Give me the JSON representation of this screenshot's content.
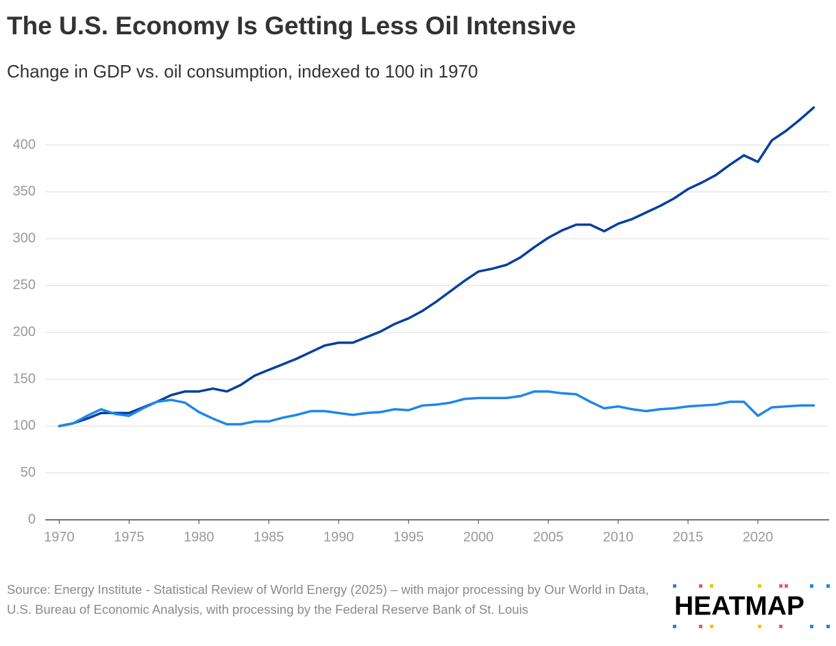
{
  "chart_data": {
    "type": "line",
    "title": "The U.S. Economy Is Getting Less Oil Intensive",
    "subtitle": "Change in GDP vs. oil consumption, indexed to 100 in 1970",
    "x": [
      1970,
      1971,
      1972,
      1973,
      1974,
      1975,
      1976,
      1977,
      1978,
      1979,
      1980,
      1981,
      1982,
      1983,
      1984,
      1985,
      1986,
      1987,
      1988,
      1989,
      1990,
      1991,
      1992,
      1993,
      1994,
      1995,
      1996,
      1997,
      1998,
      1999,
      2000,
      2001,
      2002,
      2003,
      2004,
      2005,
      2006,
      2007,
      2008,
      2009,
      2010,
      2011,
      2012,
      2013,
      2014,
      2015,
      2016,
      2017,
      2018,
      2019,
      2020,
      2021,
      2022,
      2023,
      2024
    ],
    "series": [
      {
        "color": "#003f9f",
        "values": [
          100,
          103,
          108,
          114,
          114,
          114,
          120,
          126,
          133,
          137,
          137,
          140,
          137,
          144,
          154,
          160,
          166,
          172,
          179,
          186,
          189,
          189,
          195,
          201,
          209,
          215,
          223,
          233,
          244,
          255,
          265,
          268,
          272,
          280,
          291,
          301,
          309,
          315,
          315,
          308,
          316,
          321,
          328,
          335,
          343,
          353,
          360,
          368,
          379,
          389,
          382,
          405,
          415,
          427,
          440
        ]
      },
      {
        "color": "#1f87e8",
        "values": [
          100,
          103,
          111,
          118,
          113,
          111,
          119,
          126,
          128,
          125,
          115,
          108,
          102,
          102,
          105,
          105,
          109,
          112,
          116,
          116,
          114,
          112,
          114,
          115,
          118,
          117,
          122,
          123,
          125,
          129,
          130,
          130,
          130,
          132,
          137,
          137,
          135,
          134,
          126,
          119,
          121,
          118,
          116,
          118,
          119,
          121,
          122,
          123,
          126,
          126,
          111,
          120,
          121,
          122,
          122
        ]
      }
    ],
    "xlim": [
      1969,
      2025.1
    ],
    "xticks": [
      1970,
      1975,
      1980,
      1985,
      1990,
      1995,
      2000,
      2005,
      2010,
      2015,
      2020
    ],
    "ylim": [
      0,
      445
    ],
    "yticks": [
      0,
      50,
      100,
      150,
      200,
      250,
      300,
      350,
      400
    ],
    "grid": true,
    "source": "Source: Energy Institute - Statistical Review of World Energy (2025) – with major processing by Our World in Data, U.S. Bureau of Economic Analysis, with processing by the Federal Reserve Bank of St. Louis",
    "logo": "HEATMAP"
  }
}
